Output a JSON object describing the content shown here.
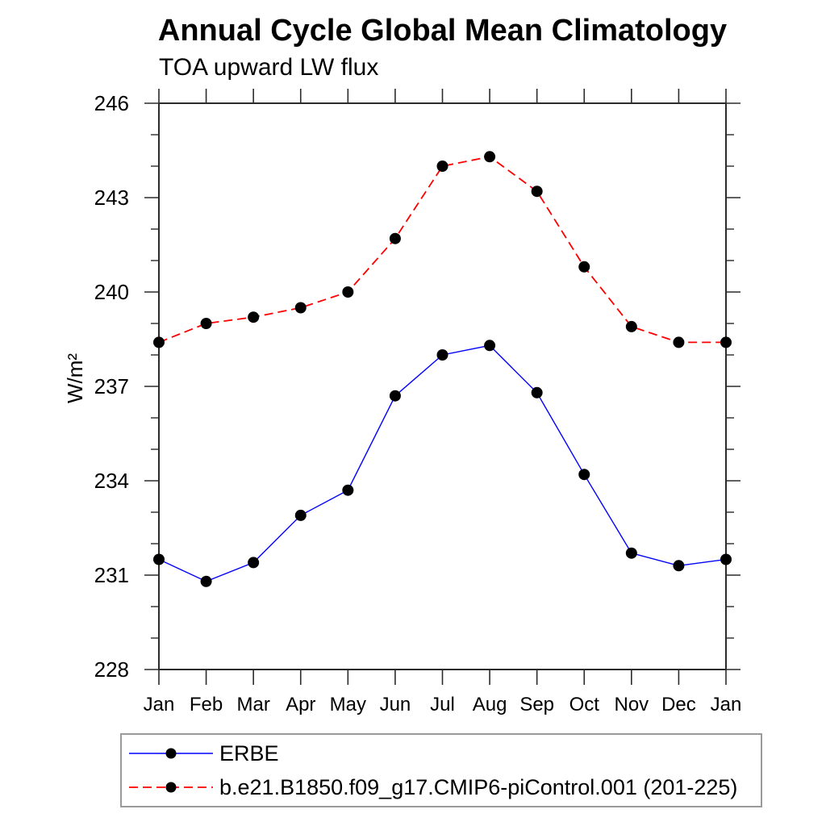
{
  "page": {
    "title": "Annual Cycle Global Mean Climatology",
    "subtitle": "TOA upward LW flux"
  },
  "chart_data": {
    "type": "line",
    "title": "Annual Cycle Global Mean Climatology",
    "subtitle": "TOA upward LW flux",
    "xlabel": "",
    "ylabel": "W/m²",
    "categories": [
      "Jan",
      "Feb",
      "Mar",
      "Apr",
      "May",
      "Jun",
      "Jul",
      "Aug",
      "Sep",
      "Oct",
      "Nov",
      "Dec",
      "Jan"
    ],
    "series": [
      {
        "name": "ERBE",
        "color": "#0000ff",
        "line_style": "solid",
        "marker": "filled-circle",
        "marker_color": "#000000",
        "values": [
          231.5,
          230.8,
          231.4,
          232.9,
          233.7,
          236.7,
          238.0,
          238.3,
          236.8,
          234.2,
          231.7,
          231.3,
          231.5
        ]
      },
      {
        "name": "b.e21.B1850.f09_g17.CMIP6-piControl.001 (201-225)",
        "color": "#ff0000",
        "line_style": "dashed",
        "marker": "filled-circle",
        "marker_color": "#000000",
        "values": [
          238.4,
          239.0,
          239.2,
          239.5,
          240.0,
          241.7,
          244.0,
          244.3,
          243.2,
          240.8,
          238.9,
          238.4,
          238.4
        ]
      }
    ],
    "ylim": [
      228,
      246
    ],
    "ytick_major": [
      228,
      231,
      234,
      237,
      240,
      243,
      246
    ],
    "ytick_minor_step": 1,
    "grid": false,
    "legend_position": "bottom-left-box",
    "axis_color": "#2b2b2b"
  }
}
